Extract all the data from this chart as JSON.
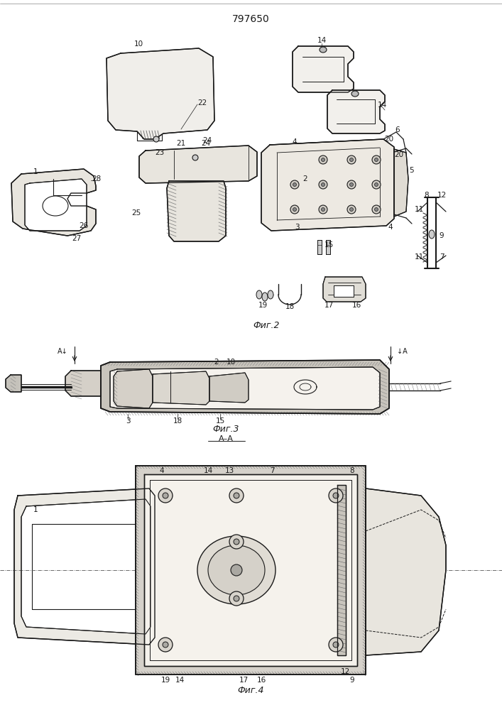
{
  "title": "797650",
  "bg_color": "#ffffff",
  "line_color": "#1a1a1a",
  "fig2_label": "Фиг.2",
  "fig3_label": "Фиг.3",
  "fig3_sub": "А–А",
  "fig4_label": "Фиг.4"
}
